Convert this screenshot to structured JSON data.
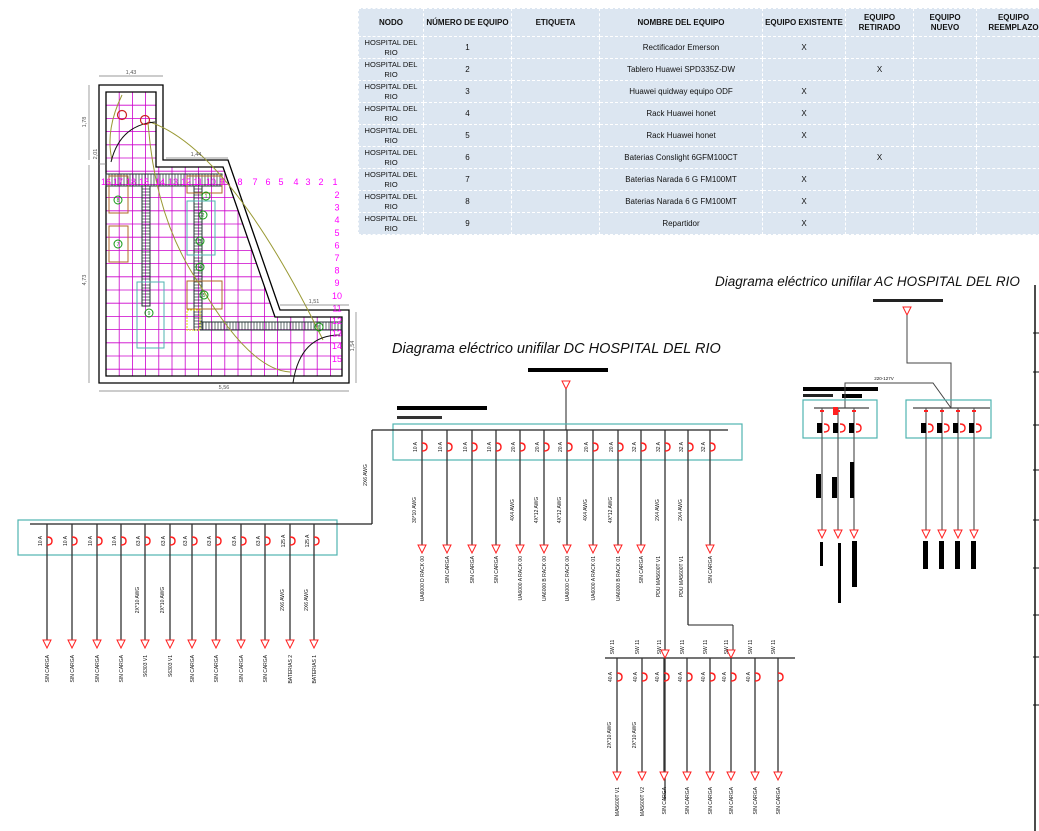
{
  "table": {
    "headers": [
      "NODO",
      "NÚMERO DE EQUIPO",
      "ETIQUETA",
      "NOMBRE DEL EQUIPO",
      "EQUIPO EXISTENTE",
      "EQUIPO RETIRADO",
      "EQUIPO NUEVO",
      "EQUIPO REEMPLAZO"
    ],
    "rows": [
      [
        "HOSPITAL DEL RIO",
        "1",
        "",
        "Rectificador Emerson",
        "X",
        "",
        "",
        ""
      ],
      [
        "HOSPITAL DEL RIO",
        "2",
        "",
        "Tablero Huawei SPD335Z-DW",
        "",
        "X",
        "",
        ""
      ],
      [
        "HOSPITAL DEL RIO",
        "3",
        "",
        "Huawei quidway equipo ODF",
        "X",
        "",
        "",
        ""
      ],
      [
        "HOSPITAL DEL RIO",
        "4",
        "",
        "Rack Huawei honet",
        "X",
        "",
        "",
        ""
      ],
      [
        "HOSPITAL DEL RIO",
        "5",
        "",
        "Rack Huawei honet",
        "X",
        "",
        "",
        ""
      ],
      [
        "HOSPITAL DEL RIO",
        "6",
        "",
        "Baterias Conslight 6GFM100CT",
        "",
        "X",
        "",
        ""
      ],
      [
        "HOSPITAL DEL RIO",
        "7",
        "",
        "Baterias Narada 6 G FM100MT",
        "X",
        "",
        "",
        ""
      ],
      [
        "HOSPITAL DEL RIO",
        "8",
        "",
        "Baterias Narada 6 G FM100MT",
        "X",
        "",
        "",
        ""
      ],
      [
        "HOSPITAL DEL RIO",
        "9",
        "",
        "Repartidor",
        "X",
        "",
        "",
        ""
      ]
    ]
  },
  "titles": {
    "dc": "Diagrama eléctrico unifilar DC HOSPITAL DEL RIO",
    "ac": "Diagrama eléctrico unifilar AC HOSPITAL DEL RIO"
  },
  "floorplan": {
    "dimensions": [
      "1,43",
      "1,78",
      "2,01",
      "1,44",
      "4,73",
      "1,51",
      "1,54",
      "5,56"
    ],
    "top_numbers": [
      "16",
      "17",
      "18",
      "15",
      "14",
      "13",
      "12",
      "11",
      "10",
      "9",
      "8",
      "7",
      "6",
      "5",
      "4",
      "3",
      "2",
      "1"
    ],
    "right_numbers": [
      "2",
      "3",
      "4",
      "5",
      "6",
      "7",
      "8",
      "9",
      "10",
      "11",
      "12",
      "13",
      "14",
      "15"
    ],
    "equipment_markers": [
      "1",
      "2",
      "3",
      "4",
      "5",
      "6",
      "7",
      "8",
      "9"
    ],
    "colors": {
      "grid": "#cc00cc",
      "numbers": "#ff00ff",
      "wall": "#000000",
      "equipment": "#119911",
      "cable": "#999933"
    }
  },
  "dc": {
    "feeder_cable": "2X6 AWG",
    "main_branches": [
      {
        "breaker": "10 A",
        "cable": "30*10 AWG",
        "load": "UA6000 D RACK 00"
      },
      {
        "breaker": "10 A",
        "cable": "",
        "load": "SIN CARGA"
      },
      {
        "breaker": "10 A",
        "cable": "",
        "load": "SIN CARGA"
      },
      {
        "breaker": "10 A",
        "cable": "",
        "load": "SIN CARGA"
      },
      {
        "breaker": "20 A",
        "cable": "4X4 AWG",
        "load": "UA6000 A RACK 00"
      },
      {
        "breaker": "20 A",
        "cable": "4X*12 AWG",
        "load": "UA6000 B RACK 00"
      },
      {
        "breaker": "20 A",
        "cable": "4X*12 AWG",
        "load": "UA6000 C RACK 00"
      },
      {
        "breaker": "20 A",
        "cable": "4X4 AWG",
        "load": "UA6000 A RACK 01"
      },
      {
        "breaker": "20 A",
        "cable": "4X*12 AWG",
        "load": "UA6000 B RACK 01"
      },
      {
        "breaker": "32 A",
        "cable": "",
        "load": "SIN CARGA"
      },
      {
        "breaker": "32 A",
        "cable": "2X4 AWG",
        "load": "PDU MA5600T V1"
      },
      {
        "breaker": "32 A",
        "cable": "2X4 AWG",
        "load": "PDU MA5600T V1"
      },
      {
        "breaker": "32 A",
        "cable": "",
        "load": "SIN CARGA"
      }
    ],
    "battery_branches": [
      {
        "breaker": "10 A",
        "cable": "",
        "load": "SIN CARGA"
      },
      {
        "breaker": "10 A",
        "cable": "",
        "load": "SIN CARGA"
      },
      {
        "breaker": "10 A",
        "cable": "",
        "load": "SIN CARGA"
      },
      {
        "breaker": "10 A",
        "cable": "",
        "load": "SIN CARGA"
      },
      {
        "breaker": "63 A",
        "cable": "2X*10 AWG",
        "load": "S6303 V1"
      },
      {
        "breaker": "63 A",
        "cable": "2X*10 AWG",
        "load": "S6303 V1"
      },
      {
        "breaker": "63 A",
        "cable": "",
        "load": "SIN CARGA"
      },
      {
        "breaker": "63 A",
        "cable": "",
        "load": "SIN CARGA"
      },
      {
        "breaker": "63 A",
        "cable": "",
        "load": "SIN CARGA"
      },
      {
        "breaker": "63 A",
        "cable": "",
        "load": "SIN CARGA"
      },
      {
        "breaker": "125 A",
        "cable": "2X6 AWG",
        "load": "BATERIAS 2"
      },
      {
        "breaker": "125 A",
        "cable": "2X6 AWG",
        "load": "BATERIAS 1"
      }
    ],
    "pdu_branches": [
      {
        "top": "SW 11",
        "breaker": "40 A",
        "cable": "2X*10 AWG",
        "load": "MA5600T V1"
      },
      {
        "top": "SW 11",
        "breaker": "40 A",
        "cable": "2X*10 AWG",
        "load": "MA5600T V2"
      },
      {
        "top": "SW 11",
        "breaker": "40 A",
        "cable": "",
        "load": "SIN CARGA"
      },
      {
        "top": "SW 11",
        "breaker": "40 A",
        "cable": "",
        "load": "SIN CARGA"
      },
      {
        "top": "SW 11",
        "breaker": "40 A",
        "cable": "",
        "load": "SIN CARGA"
      },
      {
        "top": "SW 11",
        "breaker": "40 A",
        "cable": "",
        "load": "SIN CARGA"
      },
      {
        "top": "SW 11",
        "breaker": "40 A",
        "cable": "",
        "load": "SIN CARGA"
      },
      {
        "top": "SW 11",
        "breaker": "",
        "cable": "",
        "load": "SIN CARGA"
      }
    ]
  },
  "ac": {
    "voltage": "220-127V"
  },
  "colors": {
    "panel_border": "#4fb3b0",
    "breaker": "#ff2020",
    "line": "#222222",
    "table_bg": "#dce6f1"
  }
}
